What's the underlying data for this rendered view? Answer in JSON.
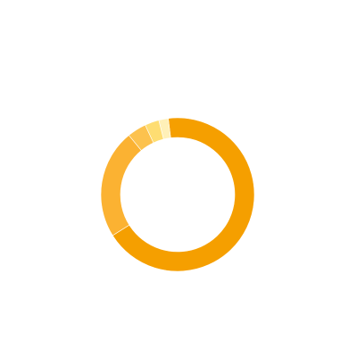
{
  "chart_data": {
    "type": "donut",
    "categories": [
      null,
      null,
      null,
      null,
      null
    ],
    "values": [
      68,
      23,
      4,
      3,
      2
    ],
    "colors": [
      "#f59f00",
      "#fbb232",
      "#fcc24e",
      "#fedd72",
      "#fff0b8"
    ]
  }
}
